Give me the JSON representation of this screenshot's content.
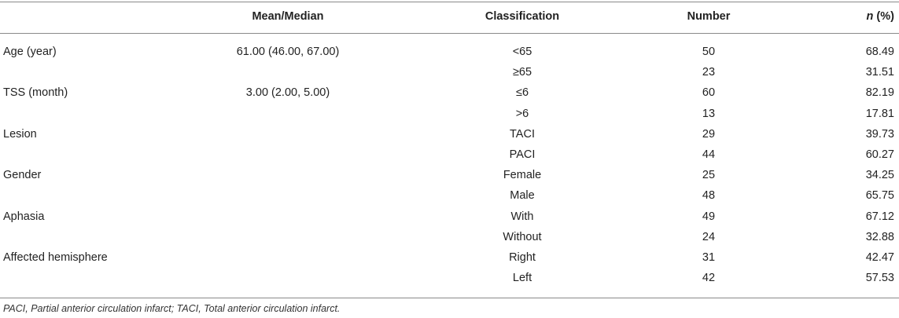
{
  "header": {
    "mean_median": "Mean/Median",
    "classification": "Classification",
    "number": "Number",
    "n_italic": "n",
    "pct_suffix": " (%)"
  },
  "rows": [
    {
      "label": "Age (year)",
      "mean": "61.00 (46.00, 67.00)",
      "classification": "<65",
      "number": "50",
      "pct": "68.49"
    },
    {
      "label": "",
      "mean": "",
      "classification": "≥65",
      "number": "23",
      "pct": "31.51"
    },
    {
      "label": "TSS (month)",
      "mean": "3.00 (2.00, 5.00)",
      "classification": "≤6",
      "number": "60",
      "pct": "82.19"
    },
    {
      "label": "",
      "mean": "",
      "classification": ">6",
      "number": "13",
      "pct": "17.81"
    },
    {
      "label": "Lesion",
      "mean": "",
      "classification": "TACI",
      "number": "29",
      "pct": "39.73"
    },
    {
      "label": "",
      "mean": "",
      "classification": "PACI",
      "number": "44",
      "pct": "60.27"
    },
    {
      "label": "Gender",
      "mean": "",
      "classification": "Female",
      "number": "25",
      "pct": "34.25"
    },
    {
      "label": "",
      "mean": "",
      "classification": "Male",
      "number": "48",
      "pct": "65.75"
    },
    {
      "label": "Aphasia",
      "mean": "",
      "classification": "With",
      "number": "49",
      "pct": "67.12"
    },
    {
      "label": "",
      "mean": "",
      "classification": "Without",
      "number": "24",
      "pct": "32.88"
    },
    {
      "label": "Affected hemisphere",
      "mean": "",
      "classification": "Right",
      "number": "31",
      "pct": "42.47"
    },
    {
      "label": "",
      "mean": "",
      "classification": "Left",
      "number": "42",
      "pct": "57.53"
    }
  ],
  "footnote": "PACI, Partial anterior circulation infarct; TACI, Total anterior circulation infarct."
}
